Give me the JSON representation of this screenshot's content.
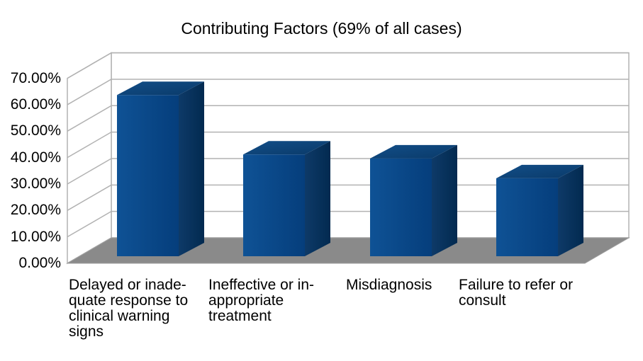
{
  "chart_data": {
    "type": "bar",
    "variant": "3d-column",
    "title": "Contributing Factors (69% of all cases)",
    "categories": [
      "Delayed or inadequate response to clinical warning signs",
      "Ineffective or inappropriate treatment",
      "Misdiagnosis",
      "Failure to refer or consult"
    ],
    "category_lines": [
      [
        "Delayed or inade-",
        "quate response to",
        "clinical warning",
        "signs"
      ],
      [
        "Ineffective or in-",
        "appropriate",
        "treatment"
      ],
      [
        "Misdiagnosis"
      ],
      [
        "Failure to refer or",
        "consult"
      ]
    ],
    "values": [
      61,
      38.5,
      37,
      29.5
    ],
    "value_unit": "%",
    "ylim": [
      0,
      70
    ],
    "y_tick_step": 10,
    "y_tick_labels": [
      "0.00%",
      "10.00%",
      "20.00%",
      "30.00%",
      "40.00%",
      "50.00%",
      "60.00%",
      "70.00%"
    ],
    "grid": true,
    "legend": false,
    "colors": {
      "bar_front": "#0f5295",
      "bar_front_dark": "#053e7c",
      "bar_side": "#0e3a68",
      "bar_side_dark": "#022a50",
      "bar_top": "#124e88",
      "bar_top_dark": "#0a3a69",
      "floor": "#8a8a8a",
      "floor_edge": "#9e9e9e",
      "gridline": "#b2b2b2",
      "background": "#ffffff",
      "text": "#000000"
    }
  }
}
